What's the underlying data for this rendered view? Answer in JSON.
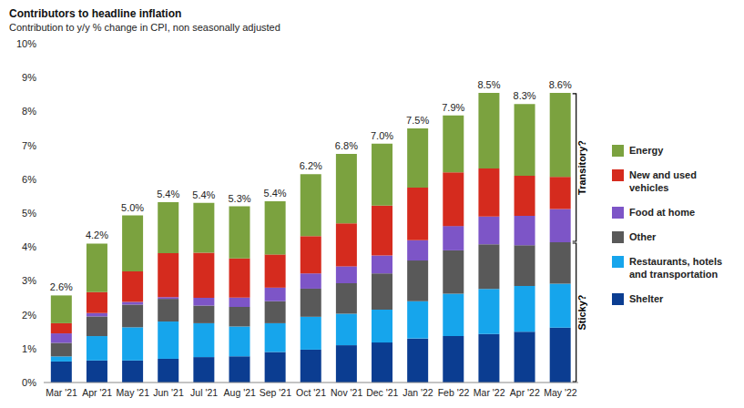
{
  "chart_data": {
    "type": "bar",
    "stacked": true,
    "title": "Contributors to headline inflation",
    "subtitle": "Contribution to y/y % change in CPI, non seasonally adjusted",
    "categories": [
      "Mar '21",
      "Apr '21",
      "May '21",
      "Jun '21",
      "Jul '21",
      "Aug '21",
      "Sep '21",
      "Oct '21",
      "Nov '21",
      "Dec '21",
      "Jan '22",
      "Feb '22",
      "Mar '22",
      "Apr '22",
      "May '22"
    ],
    "series": [
      {
        "name": "Shelter",
        "color": "#0b3d91",
        "values": [
          0.62,
          0.65,
          0.65,
          0.7,
          0.75,
          0.77,
          0.9,
          0.97,
          1.1,
          1.18,
          1.3,
          1.37,
          1.43,
          1.5,
          1.62
        ]
      },
      {
        "name": "Restaurants, hotels and transportation",
        "color": "#16a5ec",
        "values": [
          0.15,
          0.72,
          0.98,
          1.1,
          1.0,
          0.88,
          0.85,
          0.97,
          0.93,
          0.97,
          1.1,
          1.25,
          1.33,
          1.35,
          1.3
        ]
      },
      {
        "name": "Other",
        "color": "#595959",
        "values": [
          0.4,
          0.58,
          0.67,
          0.67,
          0.52,
          0.58,
          0.65,
          0.83,
          0.9,
          1.07,
          1.2,
          1.28,
          1.32,
          1.2,
          1.22
        ]
      },
      {
        "name": "Food  at home",
        "color": "#7d55c7",
        "values": [
          0.28,
          0.1,
          0.08,
          0.05,
          0.23,
          0.28,
          0.4,
          0.45,
          0.5,
          0.53,
          0.6,
          0.72,
          0.82,
          0.87,
          0.98
        ]
      },
      {
        "name": "New and used vehicles",
        "color": "#d52b1e",
        "values": [
          0.3,
          0.62,
          0.9,
          1.3,
          1.33,
          1.15,
          0.98,
          1.1,
          1.27,
          1.47,
          1.55,
          1.58,
          1.42,
          1.18,
          0.95
        ]
      },
      {
        "name": "Energy",
        "color": "#7ba23f",
        "values": [
          0.82,
          1.43,
          1.65,
          1.5,
          1.47,
          1.54,
          1.57,
          1.83,
          2.05,
          1.83,
          1.75,
          1.68,
          2.23,
          2.12,
          2.48
        ]
      }
    ],
    "totals": {
      "values": [
        2.6,
        4.2,
        5.0,
        5.4,
        5.4,
        5.3,
        5.4,
        6.2,
        6.8,
        7.0,
        7.5,
        7.9,
        8.5,
        8.3,
        8.6
      ],
      "value_labels": [
        "2.6%",
        "4.2%",
        "5.0%",
        "5.4%",
        "5.4%",
        "5.3%",
        "5.4%",
        "6.2%",
        "6.8%",
        "7.0%",
        "7.5%",
        "7.9%",
        "8.5%",
        "8.3%",
        "8.6%"
      ]
    },
    "annotations": [
      {
        "text": "Transitory?",
        "category": "May '22",
        "series": [
          "Food  at home",
          "New and used vehicles",
          "Energy"
        ]
      },
      {
        "text": "Sticky?",
        "category": "May '22",
        "series": [
          "Shelter",
          "Restaurants, hotels and transportation",
          "Other"
        ]
      }
    ],
    "ylim": [
      0,
      10
    ],
    "yticks": [
      {
        "value": 0,
        "label": "0%"
      },
      {
        "value": 1,
        "label": "1%"
      },
      {
        "value": 2,
        "label": "2%"
      },
      {
        "value": 3,
        "label": "3%"
      },
      {
        "value": 4,
        "label": "4%"
      },
      {
        "value": 5,
        "label": "5%"
      },
      {
        "value": 6,
        "label": "6%"
      },
      {
        "value": 7,
        "label": "7%"
      },
      {
        "value": 8,
        "label": "8%"
      },
      {
        "value": 9,
        "label": "9%"
      },
      {
        "value": 10,
        "label": "10%"
      }
    ],
    "grid": false,
    "legend": "right"
  }
}
